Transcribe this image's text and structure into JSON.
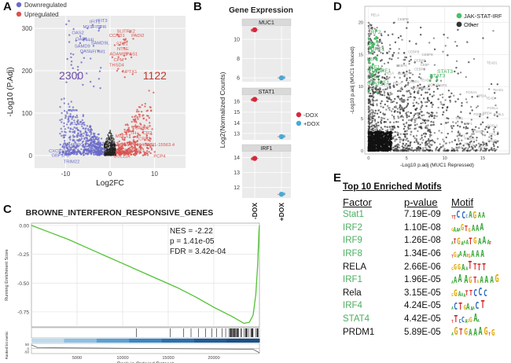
{
  "panels": {
    "a": "A",
    "b": "B",
    "c": "C",
    "d": "D",
    "e": "E"
  },
  "volcano": {
    "legend": [
      {
        "label": "Downregulated",
        "color": "#6a6ac8"
      },
      {
        "label": "Upregulated",
        "color": "#d9534f"
      }
    ],
    "xlabel": "Log2FC",
    "ylabel": "-Log10 (P.Adj)",
    "count_down": "2300",
    "count_up": "1122",
    "x_ticks": [
      "-10",
      "0",
      "10"
    ],
    "y_ticks": [
      "0",
      "100",
      "200",
      "300"
    ],
    "down_genes": [
      {
        "t": "IFIT1",
        "x": -4.6,
        "y": 312
      },
      {
        "t": "IFIT3",
        "x": -3.0,
        "y": 315
      },
      {
        "t": "MX1",
        "x": -6.1,
        "y": 300
      },
      {
        "t": "IFIT2",
        "x": -4.2,
        "y": 300
      },
      {
        "t": "IFI6",
        "x": -2.6,
        "y": 300
      },
      {
        "t": "OAS2",
        "x": -8.6,
        "y": 286
      },
      {
        "t": "OAS1",
        "x": -7.8,
        "y": 272
      },
      {
        "t": "IFI44L",
        "x": -6.3,
        "y": 270
      },
      {
        "t": "SAMD9L",
        "x": -4.3,
        "y": 262
      },
      {
        "t": "SAMD9",
        "x": -8.0,
        "y": 255
      },
      {
        "t": "IFITM1",
        "x": -4.3,
        "y": 242
      },
      {
        "t": "OASL",
        "x": -6.8,
        "y": 243
      },
      {
        "t": "RSAD2",
        "x": -9.0,
        "y": 72
      },
      {
        "t": "AL445490.1",
        "x": -10.8,
        "y": 22
      },
      {
        "t": "CXCL10",
        "x": -13.8,
        "y": 7
      },
      {
        "t": "GBP1P1",
        "x": -13.2,
        "y": -3
      },
      {
        "t": "C6",
        "x": -9.2,
        "y": 2
      },
      {
        "t": "TRIM22",
        "x": -10.5,
        "y": -18
      }
    ],
    "up_genes": [
      {
        "t": "SLITRK2",
        "x": 1.5,
        "y": 290
      },
      {
        "t": "CCND1",
        "x": -0.2,
        "y": 280
      },
      {
        "t": "PADI2",
        "x": 4.8,
        "y": 280
      },
      {
        "t": "STC1",
        "x": 1.4,
        "y": 260
      },
      {
        "t": "NT5E",
        "x": 1.6,
        "y": 248
      },
      {
        "t": "ADAM19",
        "x": -0.1,
        "y": 236
      },
      {
        "t": "EPAS1",
        "x": 3.0,
        "y": 236
      },
      {
        "t": "CPM",
        "x": 0.8,
        "y": 222
      },
      {
        "t": "THSD4",
        "x": -0.2,
        "y": 210
      },
      {
        "t": "NPTX1",
        "x": 2.8,
        "y": 195
      },
      {
        "t": "CALB2",
        "x": 5.6,
        "y": 62
      },
      {
        "t": "TH",
        "x": 4.5,
        "y": 50
      },
      {
        "t": "CR2",
        "x": 7.4,
        "y": 50
      },
      {
        "t": "MUC1",
        "x": 1.2,
        "y": 42
      },
      {
        "t": "CRB3",
        "x": 6.4,
        "y": 36
      },
      {
        "t": "AP000462.1",
        "x": 4.0,
        "y": 22
      },
      {
        "t": "RP1-15563.4",
        "x": 8.5,
        "y": 22
      },
      {
        "t": "PRSS22",
        "x": 3.2,
        "y": 8
      },
      {
        "t": "BCL11A",
        "x": 0.8,
        "y": -5
      },
      {
        "t": "PCP4",
        "x": 9.8,
        "y": -5
      }
    ]
  },
  "gene_expression": {
    "title": "Gene Expression",
    "ylabel": "Log2(Normalized Counts)",
    "x_categories": [
      "-DOX",
      "+DOX"
    ],
    "legend": [
      {
        "label": "-DOX",
        "color": "#d62839"
      },
      {
        "label": "+DOX",
        "color": "#4aa8d8"
      }
    ],
    "panels": [
      {
        "name": "MUC1",
        "ylim": [
          5.6,
          11.4
        ],
        "ticks": [
          "6",
          "8",
          "10"
        ],
        "tick_vals": [
          6,
          8,
          10
        ],
        "minus_dox": 11.0,
        "plus_dox": 6.0
      },
      {
        "name": "STAT1",
        "ylim": [
          12.4,
          16.6
        ],
        "ticks": [
          "13",
          "14",
          "15",
          "16"
        ],
        "tick_vals": [
          13,
          14,
          15,
          16
        ],
        "minus_dox": 16.2,
        "plus_dox": 12.7
      },
      {
        "name": "IRF1",
        "ylim": [
          11.3,
          14.4
        ],
        "ticks": [
          "12",
          "13",
          "14"
        ],
        "tick_vals": [
          12,
          13,
          14
        ],
        "minus_dox": 13.95,
        "plus_dox": 11.55
      }
    ]
  },
  "gsea": {
    "title": "BROWNE_INTERFERON_RESPONSIVE_GENES",
    "stats": [
      "NES = -2.22",
      "p = 1.41e-05",
      "FDR = 3.42e-04"
    ],
    "ylabel": "Running Enrichment Score",
    "xlabel": "Rank in Ordered Dataset",
    "ylabel2": "Ranked list metric",
    "y_ticks": [
      "0.00",
      "-0.25",
      "-0.50",
      "-0.75"
    ],
    "y_tick_vals": [
      0,
      -0.25,
      -0.5,
      -0.75
    ],
    "x_ticks": [
      "5000",
      "10000",
      "15000",
      "20000"
    ],
    "x_tick_vals": [
      5000,
      10000,
      15000,
      20000
    ],
    "metric_ticks": [
      "50",
      "0",
      "-50"
    ],
    "xmax": 25000,
    "ylim": [
      -0.88,
      0.02
    ],
    "curve": [
      [
        0,
        0.0
      ],
      [
        2000,
        -0.06
      ],
      [
        4000,
        -0.12
      ],
      [
        6000,
        -0.19
      ],
      [
        8000,
        -0.26
      ],
      [
        10000,
        -0.33
      ],
      [
        12000,
        -0.4
      ],
      [
        14000,
        -0.47
      ],
      [
        16000,
        -0.54
      ],
      [
        18000,
        -0.62
      ],
      [
        20000,
        -0.71
      ],
      [
        22000,
        -0.79
      ],
      [
        23300,
        -0.85
      ],
      [
        23900,
        -0.84
      ],
      [
        24300,
        -0.78
      ],
      [
        24600,
        -0.6
      ],
      [
        24800,
        -0.35
      ],
      [
        24950,
        -0.05
      ],
      [
        25000,
        0.0
      ]
    ]
  },
  "scatter": {
    "legend": [
      {
        "label": "JAK-STAT-IRF",
        "color": "#4cbf6a"
      },
      {
        "label": "Other",
        "color": "#333333"
      }
    ],
    "xlabel": "-Log10 p.adj (MUC1 Repressed)",
    "ylabel": "-Log10 p.adj (MUC1 Induced)",
    "x_ticks": [
      "0",
      "5",
      "10",
      "15"
    ],
    "x_tick_vals": [
      0,
      5,
      10,
      15
    ],
    "y_ticks": [
      "0",
      "5",
      "10",
      "15",
      "20"
    ],
    "y_tick_vals": [
      0,
      5,
      10,
      15,
      20
    ],
    "xlim": [
      -0.5,
      18.5
    ],
    "ylim": [
      -0.5,
      22.5
    ],
    "green_labels": [
      {
        "t": "IRF2",
        "x": 0.1,
        "y": 18.2
      },
      {
        "t": "IRF2",
        "x": -0.2,
        "y": 16.3
      },
      {
        "t": "IRF1",
        "x": 0.6,
        "y": 15.6
      },
      {
        "t": "IRF1",
        "x": -0.2,
        "y": 14.0
      },
      {
        "t": "IRF1",
        "x": 0.0,
        "y": 12.8
      },
      {
        "t": "STAT1",
        "x": -0.2,
        "y": 12.2
      },
      {
        "t": "IRF1",
        "x": 1.4,
        "y": 12.2
      },
      {
        "t": "STAT3",
        "x": 9.0,
        "y": 12.1
      },
      {
        "t": "STAT3",
        "x": 8.0,
        "y": 11.4
      },
      {
        "t": "STAT",
        "x": -0.2,
        "y": 11.2
      },
      {
        "t": "STAT1",
        "x": -0.2,
        "y": 10.2
      },
      {
        "t": "IRF1",
        "x": 1.2,
        "y": 10.4
      }
    ],
    "gray_labels": [
      {
        "t": "RELA",
        "x": 0.3,
        "y": 21.0
      },
      {
        "t": "CEBPB",
        "x": 3.8,
        "y": 20.3
      },
      {
        "t": "CEBPB",
        "x": 5.2,
        "y": 15.2
      },
      {
        "t": "CEBPB",
        "x": 7.0,
        "y": 14.8
      },
      {
        "t": "CEBPB",
        "x": 6.0,
        "y": 13.9
      },
      {
        "t": "CEBPA",
        "x": 3.6,
        "y": 13.1
      },
      {
        "t": "CEBP",
        "x": 6.8,
        "y": 13.2
      },
      {
        "t": "CEBPE",
        "x": 6.0,
        "y": 12.5
      },
      {
        "t": "RELA",
        "x": 2.2,
        "y": 11.9
      },
      {
        "t": "NFKB1",
        "x": 3.8,
        "y": 11.8
      },
      {
        "t": "CEBPA",
        "x": 5.2,
        "y": 10.6
      },
      {
        "t": "TEAD4",
        "x": 6.8,
        "y": 10.8
      },
      {
        "t": "HOXA9",
        "x": 7.8,
        "y": 10.1
      },
      {
        "t": "SPI1",
        "x": 9.4,
        "y": 10.0
      },
      {
        "t": "RELA",
        "x": 3.2,
        "y": 10.3
      },
      {
        "t": "RELA",
        "x": 1.8,
        "y": 10.1
      },
      {
        "t": "CREB",
        "x": 6.0,
        "y": 9.6
      },
      {
        "t": "BRD4",
        "x": 7.0,
        "y": 9.5
      },
      {
        "t": "TEAD1",
        "x": 15.5,
        "y": 13.5
      },
      {
        "t": "TEAD1",
        "x": 16.3,
        "y": 9.3
      },
      {
        "t": "FOXA1",
        "x": 12.8,
        "y": 8.9
      },
      {
        "t": "BRD4",
        "x": 14.3,
        "y": 8.4
      },
      {
        "t": "TEAD",
        "x": 15.4,
        "y": 8.0
      },
      {
        "t": "FOSL1",
        "x": 15.6,
        "y": 6.5
      },
      {
        "t": "BRD4",
        "x": 15.0,
        "y": 5.7
      },
      {
        "t": "FOSL2",
        "x": 13.8,
        "y": 5.5
      },
      {
        "t": "FOSL1",
        "x": 16.4,
        "y": 5.5
      },
      {
        "t": "TAL1",
        "x": 11.4,
        "y": 4.9
      },
      {
        "t": "NRF1",
        "x": 12.5,
        "y": 4.0
      },
      {
        "t": "FOSL2",
        "x": 15.6,
        "y": 3.7
      },
      {
        "t": "SMCA",
        "x": 14.0,
        "y": 2.8
      },
      {
        "t": "SPI1",
        "x": 15.8,
        "y": 2.4
      },
      {
        "t": "YAP1",
        "x": 11.6,
        "y": 2.1
      },
      {
        "t": "FOSL1",
        "x": 12.6,
        "y": 1.7
      },
      {
        "t": "SMAD",
        "x": 15.6,
        "y": 1.4
      },
      {
        "t": "NKX2",
        "x": 12.6,
        "y": 0.9
      },
      {
        "t": "MYC",
        "x": 14.4,
        "y": 0.3
      },
      {
        "t": "RORC",
        "x": 11.4,
        "y": 0.3
      }
    ]
  },
  "motifs": {
    "title": "Top 10 Enriched Motifs",
    "headers": {
      "factor": "Factor",
      "pvalue": "p-value",
      "motif": "Motif"
    },
    "rows": [
      {
        "factor": "Stat1",
        "pvalue": "7.19E-09",
        "green": true,
        "logo": "TTCCCAGAA"
      },
      {
        "factor": "IRF2",
        "pvalue": "1.10E-08",
        "green": true,
        "logo": "GAAAGTGAAA"
      },
      {
        "factor": "IRF9",
        "pvalue": "1.26E-08",
        "green": true,
        "logo": "ATGAAATGAAAT"
      },
      {
        "factor": "IRF8",
        "pvalue": "1.34E-06",
        "green": true,
        "logo": "TGAAATGAAA"
      },
      {
        "factor": "RELA",
        "pvalue": "2.66E-06",
        "green": false,
        "logo": "GGGAATTTT"
      },
      {
        "factor": "IRF1",
        "pvalue": "1.96E-05",
        "green": true,
        "logo": "AAAAGTGAAAG"
      },
      {
        "factor": "Rela",
        "pvalue": "3.15E-05",
        "green": false,
        "logo": "GGAAATTCCC"
      },
      {
        "factor": "IRF4",
        "pvalue": "4.24E-05",
        "green": true,
        "logo": "ACTGAAACT"
      },
      {
        "factor": "STAT4",
        "pvalue": "4.42E-05",
        "green": true,
        "logo": "TTCCAGGAA"
      },
      {
        "factor": "PRDM1",
        "pvalue": "5.89E-05",
        "green": false,
        "logo": "AGTGAAAGTG"
      }
    ],
    "green_color": "#4cae60",
    "black_color": "#111111"
  }
}
